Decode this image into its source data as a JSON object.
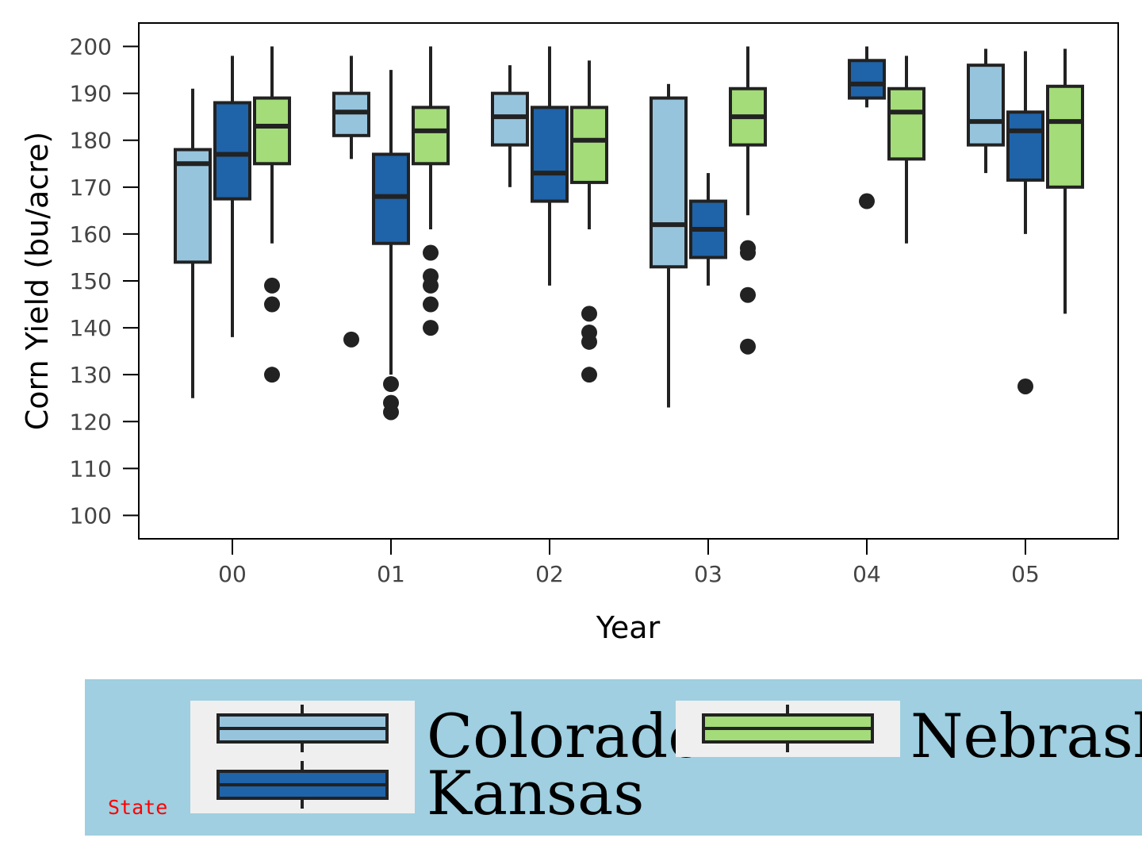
{
  "chart_data": {
    "type": "box",
    "xlabel": "Year",
    "ylabel": "Corn Yield (bu/acre)",
    "categories": [
      "00",
      "01",
      "02",
      "03",
      "04",
      "05"
    ],
    "y_ticks": [
      100,
      110,
      120,
      130,
      140,
      150,
      160,
      170,
      180,
      190,
      200
    ],
    "ylim": [
      95,
      205
    ],
    "grid": false,
    "legend": {
      "title": "State",
      "placement": "bottom"
    },
    "series": [
      {
        "name": "Colorado",
        "color": "#97c4dd",
        "boxes": [
          {
            "category": "00",
            "whisker_low": 125,
            "q1": 154,
            "median": 175,
            "q3": 178,
            "whisker_high": 191,
            "outliers": []
          },
          {
            "category": "01",
            "whisker_low": 176,
            "q1": 181,
            "median": 186,
            "q3": 190,
            "whisker_high": 198,
            "outliers": [
              137.5
            ]
          },
          {
            "category": "02",
            "whisker_low": 170,
            "q1": 179,
            "median": 185,
            "q3": 190,
            "whisker_high": 196,
            "outliers": []
          },
          {
            "category": "03",
            "whisker_low": 123,
            "q1": 153,
            "median": 162,
            "q3": 189,
            "whisker_high": 192,
            "outliers": []
          },
          {
            "category": "05",
            "whisker_low": 173,
            "q1": 179,
            "median": 184,
            "q3": 196,
            "whisker_high": 199.5,
            "outliers": []
          }
        ]
      },
      {
        "name": "Kansas",
        "color": "#1f63a8",
        "boxes": [
          {
            "category": "00",
            "whisker_low": 138,
            "q1": 167.5,
            "median": 177,
            "q3": 188,
            "whisker_high": 198,
            "outliers": []
          },
          {
            "category": "01",
            "whisker_low": 130,
            "q1": 158,
            "median": 168,
            "q3": 177,
            "whisker_high": 195,
            "outliers": [
              128,
              124,
              122
            ]
          },
          {
            "category": "02",
            "whisker_low": 149,
            "q1": 167,
            "median": 173,
            "q3": 187,
            "whisker_high": 200,
            "outliers": []
          },
          {
            "category": "03",
            "whisker_low": 149,
            "q1": 155,
            "median": 161,
            "q3": 167,
            "whisker_high": 173,
            "outliers": []
          },
          {
            "category": "04",
            "whisker_low": 187,
            "q1": 189,
            "median": 192,
            "q3": 197,
            "whisker_high": 200,
            "outliers": [
              167
            ]
          },
          {
            "category": "05",
            "whisker_low": 160,
            "q1": 171.5,
            "median": 182,
            "q3": 186,
            "whisker_high": 199,
            "outliers": [
              127.5
            ]
          }
        ]
      },
      {
        "name": "Nebraska",
        "color": "#a3dc78",
        "boxes": [
          {
            "category": "00",
            "whisker_low": 158,
            "q1": 175,
            "median": 183,
            "q3": 189,
            "whisker_high": 200,
            "outliers": [
              149,
              145,
              130
            ]
          },
          {
            "category": "01",
            "whisker_low": 161,
            "q1": 175,
            "median": 182,
            "q3": 187,
            "whisker_high": 200,
            "outliers": [
              156,
              151,
              149,
              145,
              140
            ]
          },
          {
            "category": "02",
            "whisker_low": 161,
            "q1": 171,
            "median": 180,
            "q3": 187,
            "whisker_high": 197,
            "outliers": [
              143,
              139,
              137,
              130
            ]
          },
          {
            "category": "03",
            "whisker_low": 164,
            "q1": 179,
            "median": 185,
            "q3": 191,
            "whisker_high": 200,
            "outliers": [
              157,
              156,
              147,
              136
            ]
          },
          {
            "category": "04",
            "whisker_low": 158,
            "q1": 176,
            "median": 186,
            "q3": 191,
            "whisker_high": 198,
            "outliers": []
          },
          {
            "category": "05",
            "whisker_low": 143,
            "q1": 170,
            "median": 184,
            "q3": 191.5,
            "whisker_high": 199.5,
            "outliers": []
          }
        ]
      }
    ]
  }
}
